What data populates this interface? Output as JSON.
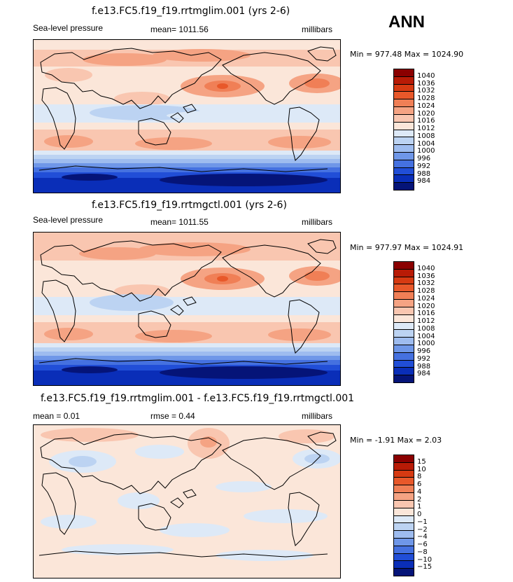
{
  "header": {
    "season": "ANN"
  },
  "panels": [
    {
      "title": "f.e13.FC5.f19_f19.rrtmglim.001 (yrs 2-6)",
      "left_label": "Sea-level pressure",
      "mid_label": "mean= 1011.56",
      "units": "millibars",
      "minmax": "Min = 977.48 Max = 1024.90",
      "levels": [
        "1040",
        "1036",
        "1032",
        "1028",
        "1024",
        "1020",
        "1016",
        "1012",
        "1008",
        "1004",
        "1000",
        "996",
        "992",
        "988",
        "984"
      ],
      "colors": [
        "#8b0000",
        "#b81b06",
        "#d63a12",
        "#e8582a",
        "#f07f56",
        "#f5a383",
        "#f9c6b0",
        "#fbe6d9",
        "#dde9f7",
        "#bcd3f2",
        "#9ebcef",
        "#6f97e8",
        "#4571e0",
        "#214ed7",
        "#0a2eb8",
        "#051478"
      ]
    },
    {
      "title": "f.e13.FC5.f19_f19.rrtmgctl.001 (yrs 2-6)",
      "left_label": "Sea-level pressure",
      "mid_label": "mean= 1011.55",
      "units": "millibars",
      "minmax": "Min = 977.97 Max = 1024.91",
      "levels": [
        "1040",
        "1036",
        "1032",
        "1028",
        "1024",
        "1020",
        "1016",
        "1012",
        "1008",
        "1004",
        "1000",
        "996",
        "992",
        "988",
        "984"
      ],
      "colors": [
        "#8b0000",
        "#b81b06",
        "#d63a12",
        "#e8582a",
        "#f07f56",
        "#f5a383",
        "#f9c6b0",
        "#fbe6d9",
        "#dde9f7",
        "#bcd3f2",
        "#9ebcef",
        "#6f97e8",
        "#4571e0",
        "#214ed7",
        "#0a2eb8",
        "#051478"
      ]
    },
    {
      "title": "f.e13.FC5.f19_f19.rrtmglim.001 - f.e13.FC5.f19_f19.rrtmgctl.001",
      "left_label": "mean =    0.01",
      "mid_label": "rmse =    0.44",
      "units": "millibars",
      "minmax": "Min =   -1.91 Max =    2.03",
      "levels": [
        "15",
        "10",
        "8",
        "6",
        "4",
        "2",
        "1",
        "0",
        "−1",
        "−2",
        "−4",
        "−6",
        "−8",
        "−10",
        "−15"
      ],
      "colors": [
        "#8b0000",
        "#b81b06",
        "#d63a12",
        "#e8582a",
        "#f07f56",
        "#f5a383",
        "#f9c6b0",
        "#fbe6d9",
        "#dde9f7",
        "#bcd3f2",
        "#9ebcef",
        "#6f97e8",
        "#4571e0",
        "#214ed7",
        "#0a2eb8",
        "#051478"
      ]
    }
  ]
}
